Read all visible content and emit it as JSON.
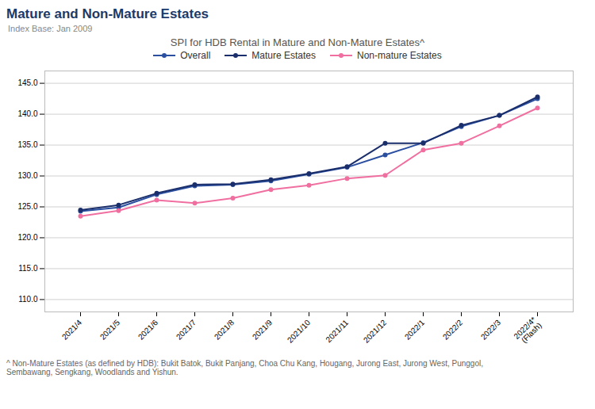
{
  "chart_data": {
    "type": "line",
    "title": "Mature and Non-Mature Estates",
    "subtitle": "Index Base: Jan 2009",
    "annotations": [
      "SPI for HDB Rental in Mature and Non-Mature Estates^",
      "^ Non-Mature Estates (as defined by HDB): Bukit Batok, Bukit Panjang, Choa Chu Kang, Hougang, Jurong East, Jurong West, Punggol,\nSembawang, Sengkang, Woodlands and Yishun."
    ],
    "categories": [
      "2021/4",
      "2021/5",
      "2021/6",
      "2021/7",
      "2021/8",
      "2021/9",
      "2021/10",
      "2021/11",
      "2021/12",
      "2022/1",
      "2022/2",
      "2022/3",
      "2022/4*\n(Flash)"
    ],
    "series": [
      {
        "name": "Overall",
        "color": "#2b4fa0",
        "marker": "circle",
        "values": [
          124.3,
          124.9,
          127.0,
          128.4,
          128.6,
          129.2,
          130.3,
          131.4,
          133.4,
          135.4,
          138.0,
          139.8,
          142.5
        ]
      },
      {
        "name": "Mature Estates",
        "color": "#1a2e6b",
        "marker": "circle",
        "values": [
          124.5,
          125.3,
          127.2,
          128.6,
          128.7,
          129.4,
          130.4,
          131.5,
          135.3,
          135.3,
          138.2,
          139.8,
          142.8
        ]
      },
      {
        "name": "Non-mature Estates",
        "color": "#f06fa0",
        "marker": "circle",
        "values": [
          123.5,
          124.4,
          126.1,
          125.6,
          126.4,
          127.8,
          128.5,
          129.6,
          130.1,
          134.2,
          135.3,
          138.1,
          141.0
        ]
      }
    ],
    "ylim": [
      108.0,
      147.0
    ],
    "yticks": [
      {
        "value": 110,
        "label": "110.0"
      },
      {
        "value": 115,
        "label": "115.0"
      },
      {
        "value": 120,
        "label": "120.0"
      },
      {
        "value": 125,
        "label": "125.0"
      },
      {
        "value": 130,
        "label": "130.0"
      },
      {
        "value": 135,
        "label": "135.0"
      },
      {
        "value": 140,
        "label": "140.0"
      },
      {
        "value": 145,
        "label": "145.0"
      }
    ],
    "grid": true,
    "legend": "top"
  }
}
